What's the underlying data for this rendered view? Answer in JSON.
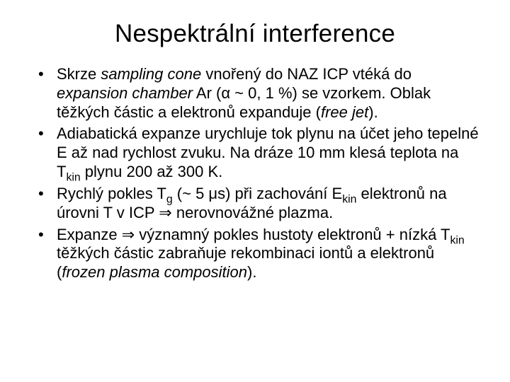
{
  "title": "Nespektrální interference",
  "bullets": [
    {
      "parts": [
        {
          "t": "Skrze "
        },
        {
          "t": "sampling cone",
          "i": true
        },
        {
          "t": " vnořený do NAZ ICP vtéká do "
        },
        {
          "t": "expansion chamber",
          "i": true
        },
        {
          "t": " Ar (α ~ 0, 1 %) se vzorkem. Oblak těžkých částic a elektronů expanduje ("
        },
        {
          "t": "free jet",
          "i": true
        },
        {
          "t": ")."
        }
      ]
    },
    {
      "parts": [
        {
          "t": "Adiabatická expanze urychluje tok plynu na účet jeho tepelné E až nad rychlost zvuku. Na dráze 10 mm klesá teplota na T"
        },
        {
          "t": "kin",
          "sub": true
        },
        {
          "t": " plynu 200 až 300 K."
        }
      ]
    },
    {
      "parts": [
        {
          "t": "Rychlý pokles T"
        },
        {
          "t": "g",
          "sub": true
        },
        {
          "t": " (~ 5 μs) při zachování E"
        },
        {
          "t": "kin",
          "sub": true
        },
        {
          "t": " elektronů na úrovni T v ICP ⇒ nerovnovážné plazma."
        }
      ]
    },
    {
      "parts": [
        {
          "t": "Expanze ⇒ významný pokles hustoty elektronů +  nízká T"
        },
        {
          "t": "kin",
          "sub": true
        },
        {
          "t": " těžkých částic zabraňuje rekombinaci iontů a elektronů ("
        },
        {
          "t": "frozen plasma composition",
          "i": true
        },
        {
          "t": ")."
        }
      ]
    }
  ]
}
